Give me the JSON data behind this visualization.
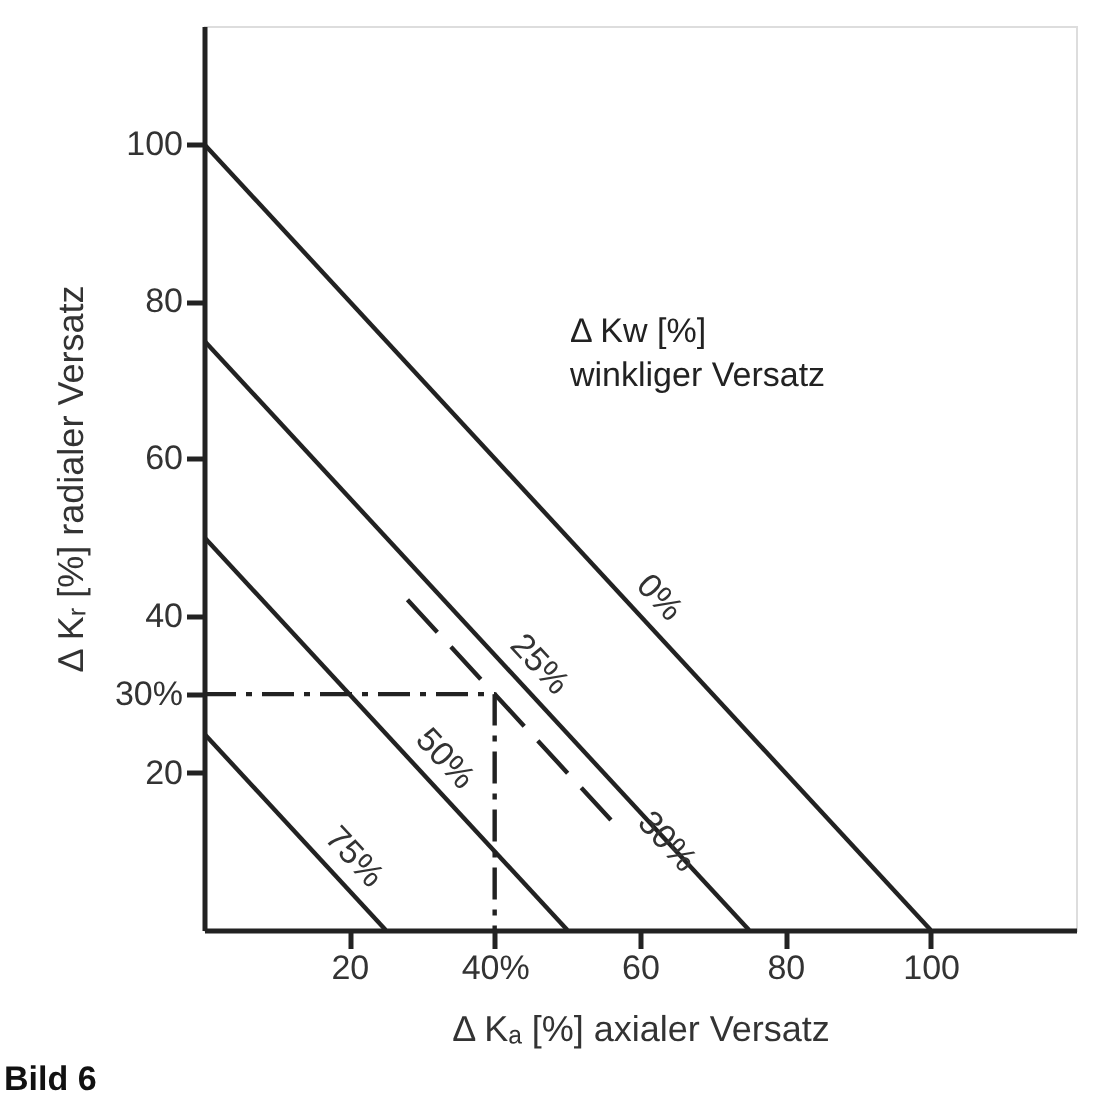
{
  "chart_data": {
    "type": "line",
    "xlabel": "Δ Kₐ [%] axialer Versatz",
    "ylabel": "Δ Kᵣ [%] radialer Versatz",
    "xlim": [
      0,
      120
    ],
    "ylim": [
      0,
      115
    ],
    "xticks": [
      20,
      {
        "value": 40,
        "label": "40%"
      },
      60,
      80,
      100
    ],
    "yticks": [
      20,
      {
        "value": 30,
        "label": "30%"
      },
      40,
      60,
      80,
      100
    ],
    "grid": false,
    "legend": false,
    "marker": "none",
    "series": [
      {
        "name": "0%",
        "color": "#222222",
        "x": [
          0,
          100
        ],
        "values": [
          100,
          0
        ],
        "line_style": "solid"
      },
      {
        "name": "25%",
        "color": "#222222",
        "x": [
          0,
          75
        ],
        "values": [
          75,
          0
        ],
        "line_style": "solid"
      },
      {
        "name": "50%",
        "color": "#222222",
        "x": [
          0,
          50
        ],
        "values": [
          50,
          0
        ],
        "line_style": "solid"
      },
      {
        "name": "75%",
        "color": "#222222",
        "x": [
          0,
          25
        ],
        "values": [
          25,
          0
        ],
        "line_style": "solid"
      },
      {
        "name": "30%",
        "color": "#222222",
        "x": [
          28,
          56
        ],
        "values": [
          42,
          14
        ],
        "line_style": "dashed"
      },
      {
        "color": "#222222",
        "x": [
          0,
          40,
          40
        ],
        "values": [
          30,
          30,
          0
        ],
        "line_style": "dashdot"
      }
    ],
    "annotations": [
      "Δ Kw [%]\nwinkliger Versatz",
      "Bild 6"
    ]
  }
}
